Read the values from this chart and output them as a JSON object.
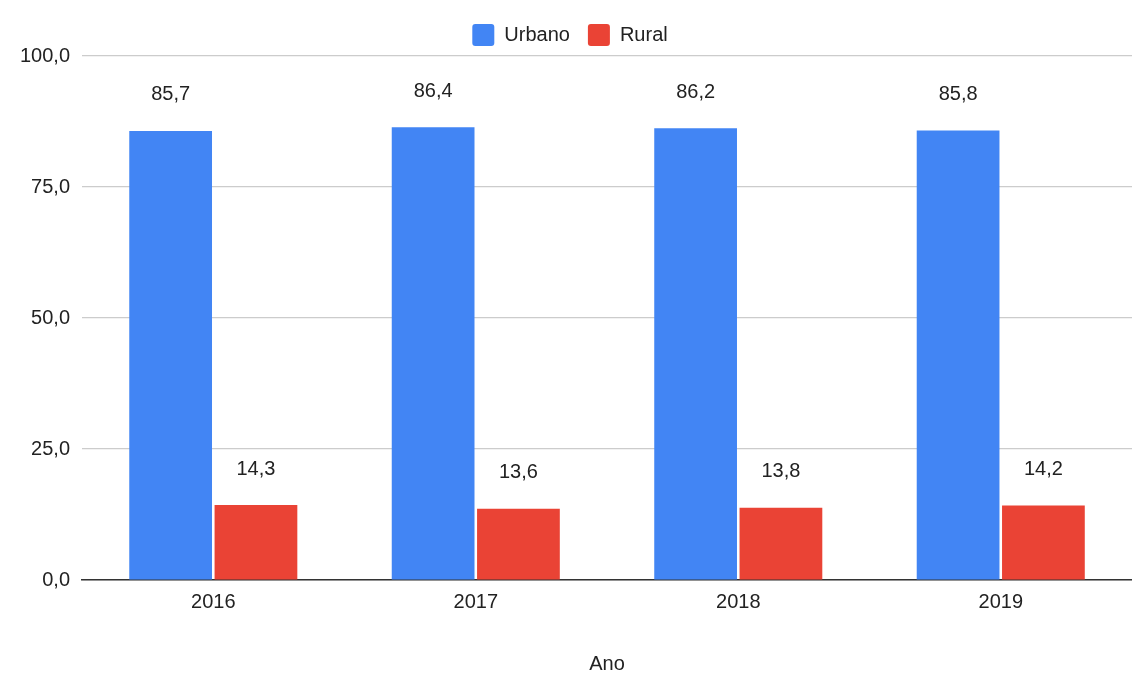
{
  "chart_data": {
    "type": "bar",
    "xlabel": "Ano",
    "categories": [
      "2016",
      "2017",
      "2018",
      "2019"
    ],
    "series": [
      {
        "name": "Urbano",
        "color": "#4285f4",
        "values": [
          85.7,
          86.4,
          86.2,
          85.8
        ],
        "value_labels": [
          "85,7",
          "86,4",
          "86,2",
          "85,8"
        ]
      },
      {
        "name": "Rural",
        "color": "#ea4335",
        "values": [
          14.3,
          13.6,
          13.8,
          14.2
        ],
        "value_labels": [
          "14,3",
          "13,6",
          "13,8",
          "14,2"
        ]
      }
    ],
    "ylim": [
      0,
      100
    ],
    "yticks": [
      {
        "value": 0,
        "label": "0,0"
      },
      {
        "value": 25,
        "label": "25,0"
      },
      {
        "value": 50,
        "label": "50,0"
      },
      {
        "value": 75,
        "label": "75,0"
      },
      {
        "value": 100,
        "label": "100,0"
      }
    ],
    "grid": "y",
    "legend": "top"
  }
}
